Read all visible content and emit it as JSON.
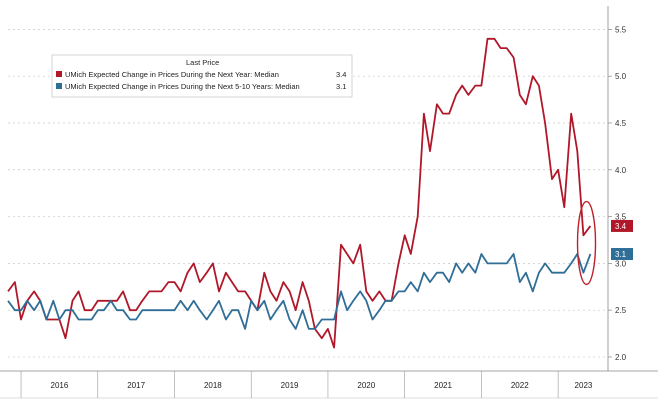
{
  "chart_data": {
    "type": "line",
    "legend": {
      "title": "Last Price",
      "placement": "top-left",
      "entries": [
        {
          "series": 0,
          "name": "UMich Expected Change in Prices During the Next Year: Median",
          "last": "3.4"
        },
        {
          "series": 1,
          "name": "UMich Expected Change in Prices During the Next 5-10 Years: Median",
          "last": "3.1"
        }
      ]
    },
    "y_axis": {
      "position": "right",
      "ylim": [
        1.85,
        5.75
      ],
      "ticks": [
        2.0,
        2.5,
        3.0,
        3.5,
        4.0,
        4.5,
        5.0,
        5.5
      ],
      "tick_labels": [
        "2.0",
        "2.5",
        "3.0",
        "3.5",
        "4.0",
        "4.5",
        "5.0",
        "5.5"
      ]
    },
    "x_axis": {
      "xlim": [
        2015.83,
        2023.65
      ],
      "year_labels": [
        "2016",
        "2017",
        "2018",
        "2019",
        "2020",
        "2021",
        "2022",
        "2023"
      ],
      "year_label_x": [
        2016.5,
        2017.5,
        2018.5,
        2019.5,
        2020.5,
        2021.5,
        2022.5,
        2023.33
      ],
      "year_boundaries": [
        2016,
        2017,
        2018,
        2019,
        2020,
        2021,
        2022,
        2023
      ]
    },
    "grid": "horizontal-dashed",
    "highlight": {
      "type": "ellipse",
      "at_x": 2023.37,
      "y_range": [
        3.0,
        3.5
      ],
      "color": "#c0202a"
    },
    "series": [
      {
        "name": "UMich Expected Change in Prices During the Next Year: Median",
        "color": "#b0182a",
        "last_label": "3.4",
        "x": [
          2015.83,
          2015.92,
          2016.0,
          2016.08,
          2016.17,
          2016.25,
          2016.33,
          2016.42,
          2016.5,
          2016.58,
          2016.67,
          2016.75,
          2016.83,
          2016.92,
          2017.0,
          2017.08,
          2017.17,
          2017.25,
          2017.33,
          2017.42,
          2017.5,
          2017.58,
          2017.67,
          2017.75,
          2017.83,
          2017.92,
          2018.0,
          2018.08,
          2018.17,
          2018.25,
          2018.33,
          2018.42,
          2018.5,
          2018.58,
          2018.67,
          2018.75,
          2018.83,
          2018.92,
          2019.0,
          2019.08,
          2019.17,
          2019.25,
          2019.33,
          2019.42,
          2019.5,
          2019.58,
          2019.67,
          2019.75,
          2019.83,
          2019.92,
          2020.0,
          2020.08,
          2020.17,
          2020.25,
          2020.33,
          2020.42,
          2020.5,
          2020.58,
          2020.67,
          2020.75,
          2020.83,
          2020.92,
          2021.0,
          2021.08,
          2021.17,
          2021.25,
          2021.33,
          2021.42,
          2021.5,
          2021.58,
          2021.67,
          2021.75,
          2021.83,
          2021.92,
          2022.0,
          2022.08,
          2022.17,
          2022.25,
          2022.33,
          2022.42,
          2022.5,
          2022.58,
          2022.67,
          2022.75,
          2022.83,
          2022.92,
          2023.0,
          2023.08,
          2023.17,
          2023.25,
          2023.33,
          2023.42
        ],
        "values": [
          2.7,
          2.8,
          2.4,
          2.6,
          2.7,
          2.6,
          2.4,
          2.4,
          2.4,
          2.2,
          2.6,
          2.7,
          2.5,
          2.5,
          2.6,
          2.6,
          2.6,
          2.6,
          2.7,
          2.5,
          2.5,
          2.6,
          2.7,
          2.7,
          2.7,
          2.8,
          2.8,
          2.7,
          2.9,
          3.0,
          2.8,
          2.9,
          3.0,
          2.7,
          2.9,
          2.8,
          2.7,
          2.7,
          2.6,
          2.5,
          2.9,
          2.7,
          2.6,
          2.8,
          2.7,
          2.5,
          2.8,
          2.6,
          2.3,
          2.2,
          2.3,
          2.1,
          3.2,
          3.1,
          3.0,
          3.2,
          2.7,
          2.6,
          2.7,
          2.6,
          2.6,
          3.0,
          3.3,
          3.1,
          3.5,
          4.6,
          4.2,
          4.7,
          4.6,
          4.6,
          4.8,
          4.9,
          4.8,
          4.9,
          4.9,
          5.4,
          5.4,
          5.3,
          5.3,
          5.2,
          4.8,
          4.7,
          5.0,
          4.9,
          4.5,
          3.9,
          4.0,
          3.6,
          4.6,
          4.2,
          3.3,
          3.4
        ]
      },
      {
        "name": "UMich Expected Change in Prices During the Next 5-10 Years: Median",
        "color": "#2f6e97",
        "last_label": "3.1",
        "x": [
          2015.83,
          2015.92,
          2016.0,
          2016.08,
          2016.17,
          2016.25,
          2016.33,
          2016.42,
          2016.5,
          2016.58,
          2016.67,
          2016.75,
          2016.83,
          2016.92,
          2017.0,
          2017.08,
          2017.17,
          2017.25,
          2017.33,
          2017.42,
          2017.5,
          2017.58,
          2017.67,
          2017.75,
          2017.83,
          2017.92,
          2018.0,
          2018.08,
          2018.17,
          2018.25,
          2018.33,
          2018.42,
          2018.5,
          2018.58,
          2018.67,
          2018.75,
          2018.83,
          2018.92,
          2019.0,
          2019.08,
          2019.17,
          2019.25,
          2019.33,
          2019.42,
          2019.5,
          2019.58,
          2019.67,
          2019.75,
          2019.83,
          2019.92,
          2020.0,
          2020.08,
          2020.17,
          2020.25,
          2020.33,
          2020.42,
          2020.5,
          2020.58,
          2020.67,
          2020.75,
          2020.83,
          2020.92,
          2021.0,
          2021.08,
          2021.17,
          2021.25,
          2021.33,
          2021.42,
          2021.5,
          2021.58,
          2021.67,
          2021.75,
          2021.83,
          2021.92,
          2022.0,
          2022.08,
          2022.17,
          2022.25,
          2022.33,
          2022.42,
          2022.5,
          2022.58,
          2022.67,
          2022.75,
          2022.83,
          2022.92,
          2023.0,
          2023.08,
          2023.17,
          2023.25,
          2023.33,
          2023.42
        ],
        "values": [
          2.6,
          2.5,
          2.5,
          2.6,
          2.5,
          2.6,
          2.4,
          2.6,
          2.4,
          2.5,
          2.5,
          2.4,
          2.4,
          2.4,
          2.5,
          2.5,
          2.6,
          2.5,
          2.5,
          2.4,
          2.4,
          2.5,
          2.5,
          2.5,
          2.5,
          2.5,
          2.5,
          2.6,
          2.5,
          2.6,
          2.5,
          2.4,
          2.5,
          2.6,
          2.4,
          2.5,
          2.5,
          2.3,
          2.6,
          2.5,
          2.6,
          2.4,
          2.5,
          2.6,
          2.4,
          2.3,
          2.5,
          2.3,
          2.3,
          2.4,
          2.4,
          2.4,
          2.7,
          2.5,
          2.6,
          2.7,
          2.6,
          2.4,
          2.5,
          2.6,
          2.6,
          2.7,
          2.7,
          2.8,
          2.7,
          2.9,
          2.8,
          2.9,
          2.9,
          2.8,
          3.0,
          2.9,
          3.0,
          2.9,
          3.1,
          3.0,
          3.0,
          3.0,
          3.0,
          3.1,
          2.8,
          2.9,
          2.7,
          2.9,
          3.0,
          2.9,
          2.9,
          2.9,
          3.0,
          3.1,
          2.9,
          3.1
        ]
      }
    ]
  }
}
